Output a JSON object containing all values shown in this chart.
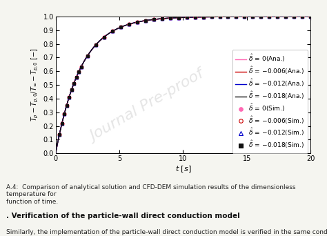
{
  "xlim": [
    0,
    20
  ],
  "ylim": [
    0,
    1.0
  ],
  "xticks": [
    0,
    5,
    10,
    15,
    20
  ],
  "yticks": [
    0,
    0.1,
    0.2,
    0.3,
    0.4,
    0.5,
    0.6,
    0.7,
    0.8,
    0.9,
    1
  ],
  "tau": 2.0,
  "delta_labels": [
    "0",
    "-0.006",
    "-0.012",
    "-0.018"
  ],
  "line_colors": [
    "#FF69B4",
    "#CC0000",
    "#0000CC",
    "#111111"
  ],
  "sim_markers": [
    "o",
    "o",
    "^",
    "s"
  ],
  "sim_facecolors": [
    "#FF69B4",
    "none",
    "none",
    "#111111"
  ],
  "sim_edgecolors": [
    "#FF69B4",
    "#CC0000",
    "#0000CC",
    "#111111"
  ],
  "background_color": "#f5f5f0",
  "plot_bg": "#ffffff",
  "legend_fontsize": 6.5,
  "axis_fontsize": 8,
  "tick_fontsize": 7,
  "figsize": [
    4.74,
    3.42
  ],
  "dpi": 100,
  "caption": "A.4:  Comparison of analytical solution and CFD-DEM simulation results of the dimensionless temperature for\nfunction of time.",
  "section_heading": ". Verification of the particle-wall direct conduction model",
  "body_text": "Similarly, the implementation of the particle-wall direct conduction model is verified in the same condition"
}
